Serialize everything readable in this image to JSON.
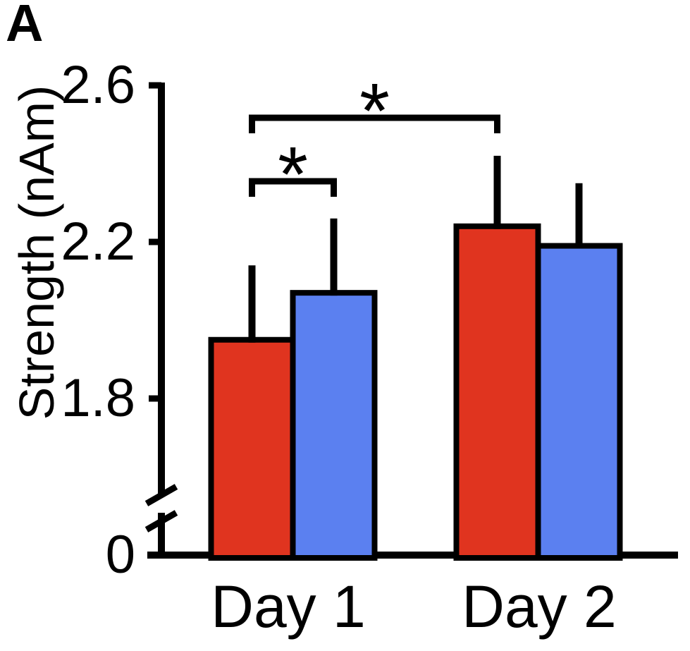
{
  "figure": {
    "panel_label": "A",
    "background_color": "#ffffff"
  },
  "chart_data": {
    "type": "bar",
    "title": "",
    "panel_label": "A",
    "ylabel": "Strength (nAm)",
    "xlabel": "",
    "categories": [
      "Day 1",
      "Day 2"
    ],
    "series": [
      {
        "name": "red",
        "color": "#E0341F",
        "values": [
          1.95,
          2.24
        ],
        "error_upper": [
          2.14,
          2.42
        ]
      },
      {
        "name": "blue",
        "color": "#5B80F0",
        "values": [
          2.07,
          2.19
        ],
        "error_upper": [
          2.26,
          2.35
        ]
      }
    ],
    "error_bars": "upper-only, no caps",
    "yticks": [
      {
        "label": "2.6",
        "value": 2.6
      },
      {
        "label": "2.2",
        "value": 2.2
      },
      {
        "label": "1.8",
        "value": 1.8
      },
      {
        "label": "0",
        "value": 0
      }
    ],
    "axis_break": true,
    "ylim_display": [
      0,
      2.6
    ],
    "grid": false,
    "legend": "none",
    "axis_color": "#000000",
    "significance": [
      {
        "from": {
          "group": 0,
          "series": 0
        },
        "to": {
          "group": 0,
          "series": 1
        },
        "label": "*"
      },
      {
        "from": {
          "group": 0,
          "series": 0
        },
        "to": {
          "group": 1,
          "series": 0
        },
        "label": "*"
      }
    ]
  }
}
